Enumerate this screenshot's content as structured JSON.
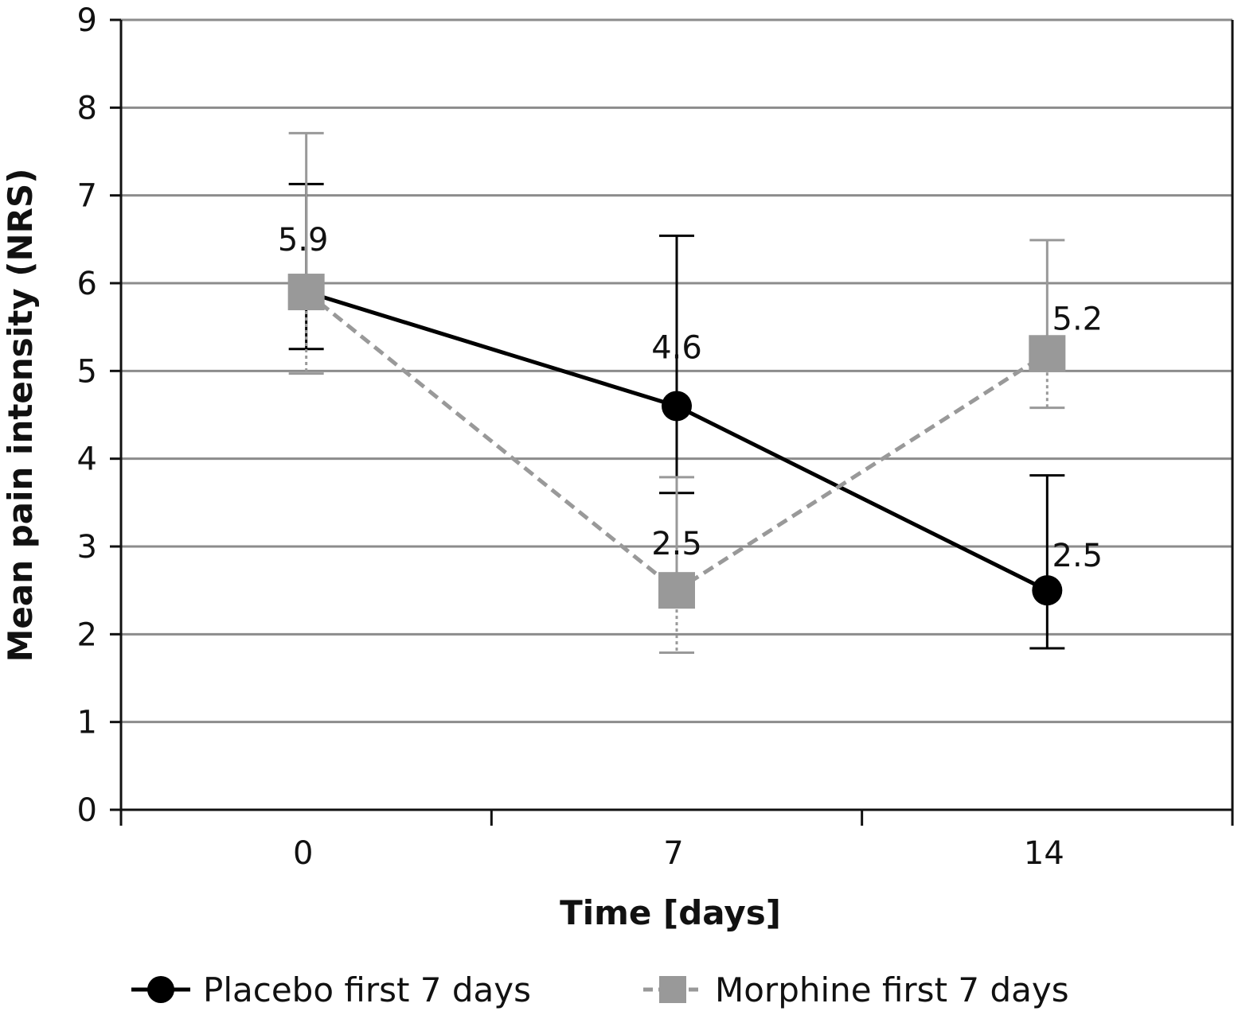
{
  "chart_data": {
    "type": "line",
    "title": "",
    "xlabel": "Time [days]",
    "ylabel": "Mean pain intensity (NRS)",
    "categories": [
      "0",
      "7",
      "14"
    ],
    "ylim": [
      0,
      9
    ],
    "yticks": [
      "0",
      "1",
      "2",
      "3",
      "4",
      "5",
      "6",
      "7",
      "8",
      "9"
    ],
    "grid": true,
    "legend_position": "bottom",
    "series": [
      {
        "name": "Placebo first 7 days",
        "color": "#000000",
        "marker": "circle",
        "dash": "solid",
        "values": [
          5.9,
          4.6,
          2.5
        ],
        "labels": [
          "5.9",
          "4.6",
          "2.5"
        ],
        "err_upper": [
          7.13,
          6.54,
          3.81
        ],
        "err_lower": [
          5.25,
          3.61,
          1.84
        ]
      },
      {
        "name": "Morphine first 7 days",
        "color": "#999999",
        "marker": "square",
        "dash": "dashed",
        "values": [
          5.9,
          2.5,
          5.2
        ],
        "labels": [
          "5.9",
          "2.5",
          "5.2"
        ],
        "err_upper": [
          7.71,
          3.79,
          6.49
        ],
        "err_lower": [
          4.97,
          1.79,
          4.58
        ]
      }
    ]
  }
}
